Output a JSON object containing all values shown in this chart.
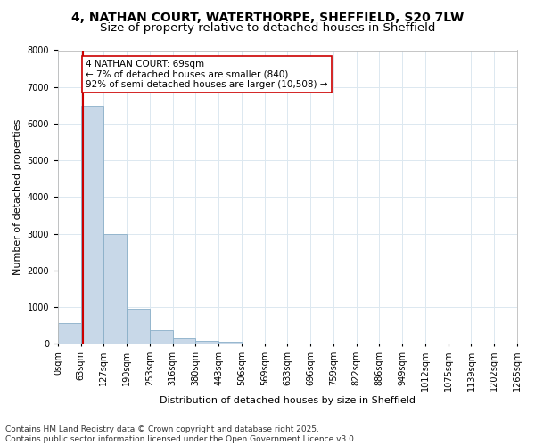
{
  "title_line1": "4, NATHAN COURT, WATERTHORPE, SHEFFIELD, S20 7LW",
  "title_line2": "Size of property relative to detached houses in Sheffield",
  "xlabel": "Distribution of detached houses by size in Sheffield",
  "ylabel": "Number of detached properties",
  "footer_line1": "Contains HM Land Registry data © Crown copyright and database right 2025.",
  "footer_line2": "Contains public sector information licensed under the Open Government Licence v3.0.",
  "bin_labels": [
    "0sqm",
    "63sqm",
    "127sqm",
    "190sqm",
    "253sqm",
    "316sqm",
    "380sqm",
    "443sqm",
    "506sqm",
    "569sqm",
    "633sqm",
    "696sqm",
    "759sqm",
    "822sqm",
    "886sqm",
    "949sqm",
    "1012sqm",
    "1075sqm",
    "1139sqm",
    "1202sqm",
    "1265sqm"
  ],
  "bar_values": [
    560,
    6480,
    2980,
    960,
    360,
    160,
    90,
    50,
    0,
    0,
    0,
    0,
    0,
    0,
    0,
    0,
    0,
    0,
    0,
    0
  ],
  "bar_color": "#c8d8e8",
  "bar_edge_color": "#8aafc8",
  "grid_color": "#dce8f0",
  "property_line_x": 1.09,
  "property_line_color": "#cc0000",
  "annotation_text": "4 NATHAN COURT: 69sqm\n← 7% of detached houses are smaller (840)\n92% of semi-detached houses are larger (10,508) →",
  "annotation_box_facecolor": "#ffffff",
  "annotation_box_edgecolor": "#cc0000",
  "ylim": [
    0,
    8000
  ],
  "yticks": [
    0,
    1000,
    2000,
    3000,
    4000,
    5000,
    6000,
    7000,
    8000
  ],
  "title1_fontsize": 10,
  "title2_fontsize": 9.5,
  "axis_label_fontsize": 8,
  "tick_fontsize": 7,
  "annotation_fontsize": 7.5,
  "footer_fontsize": 6.5,
  "bg_color": "#ffffff"
}
